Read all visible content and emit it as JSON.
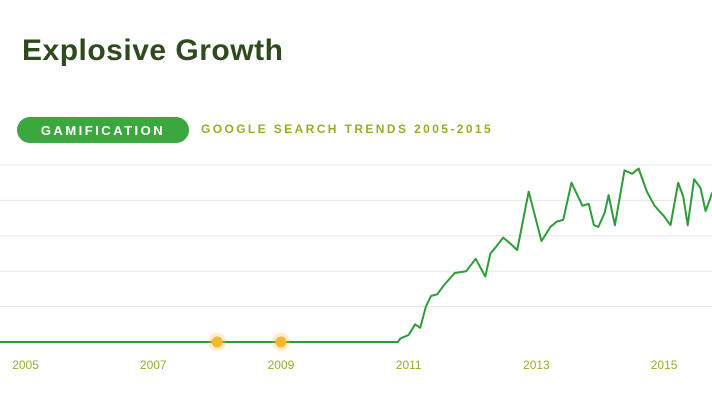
{
  "header": {
    "title": "Explosive Growth",
    "topic_badge": "GAMIFICATION",
    "subtitle": "GOOGLE SEARCH TRENDS 2005-2015"
  },
  "colors": {
    "title": "#2f4a1f",
    "badge": "#3aa83f",
    "subtitle": "#9aab2c",
    "line": "#2e9c38",
    "grid": "#e6e6e6",
    "tick_label": "#9aab2c",
    "marker": "#f5b82e"
  },
  "chart_data": {
    "type": "line",
    "title": "",
    "xlabel": "",
    "ylabel": "",
    "xlim": [
      2004.6,
      2015.75
    ],
    "ylim": [
      0,
      100
    ],
    "grid": true,
    "x_ticks": [
      2005,
      2007,
      2009,
      2011,
      2013,
      2015
    ],
    "series": [
      {
        "x": [
          2004.6,
          2010.83,
          2010.87,
          2011.0,
          2011.1,
          2011.18,
          2011.27,
          2011.35,
          2011.45,
          2011.55,
          2011.72,
          2011.9,
          2012.05,
          2012.2,
          2012.28,
          2012.35,
          2012.48,
          2012.58,
          2012.7,
          2012.88,
          2013.08,
          2013.22,
          2013.32,
          2013.42,
          2013.55,
          2013.72,
          2013.82,
          2013.9,
          2013.97,
          2014.07,
          2014.13,
          2014.23,
          2014.38,
          2014.5,
          2014.6,
          2014.73,
          2014.85,
          2015.0,
          2015.1,
          2015.22,
          2015.3,
          2015.37,
          2015.47,
          2015.57,
          2015.65,
          2015.75
        ],
        "y": [
          0,
          0,
          2,
          4,
          10,
          8,
          20,
          26,
          27,
          32,
          39,
          40,
          47,
          37,
          50,
          53,
          59,
          56,
          52,
          85,
          57,
          65,
          68,
          69,
          90,
          77,
          78,
          66,
          65,
          73,
          83,
          66,
          97,
          95,
          98,
          85,
          77,
          71,
          66,
          90,
          82,
          66,
          92,
          87,
          74,
          84
        ]
      }
    ],
    "markers": [
      {
        "x": 2008.0,
        "y": 0
      },
      {
        "x": 2009.0,
        "y": 0
      }
    ]
  }
}
